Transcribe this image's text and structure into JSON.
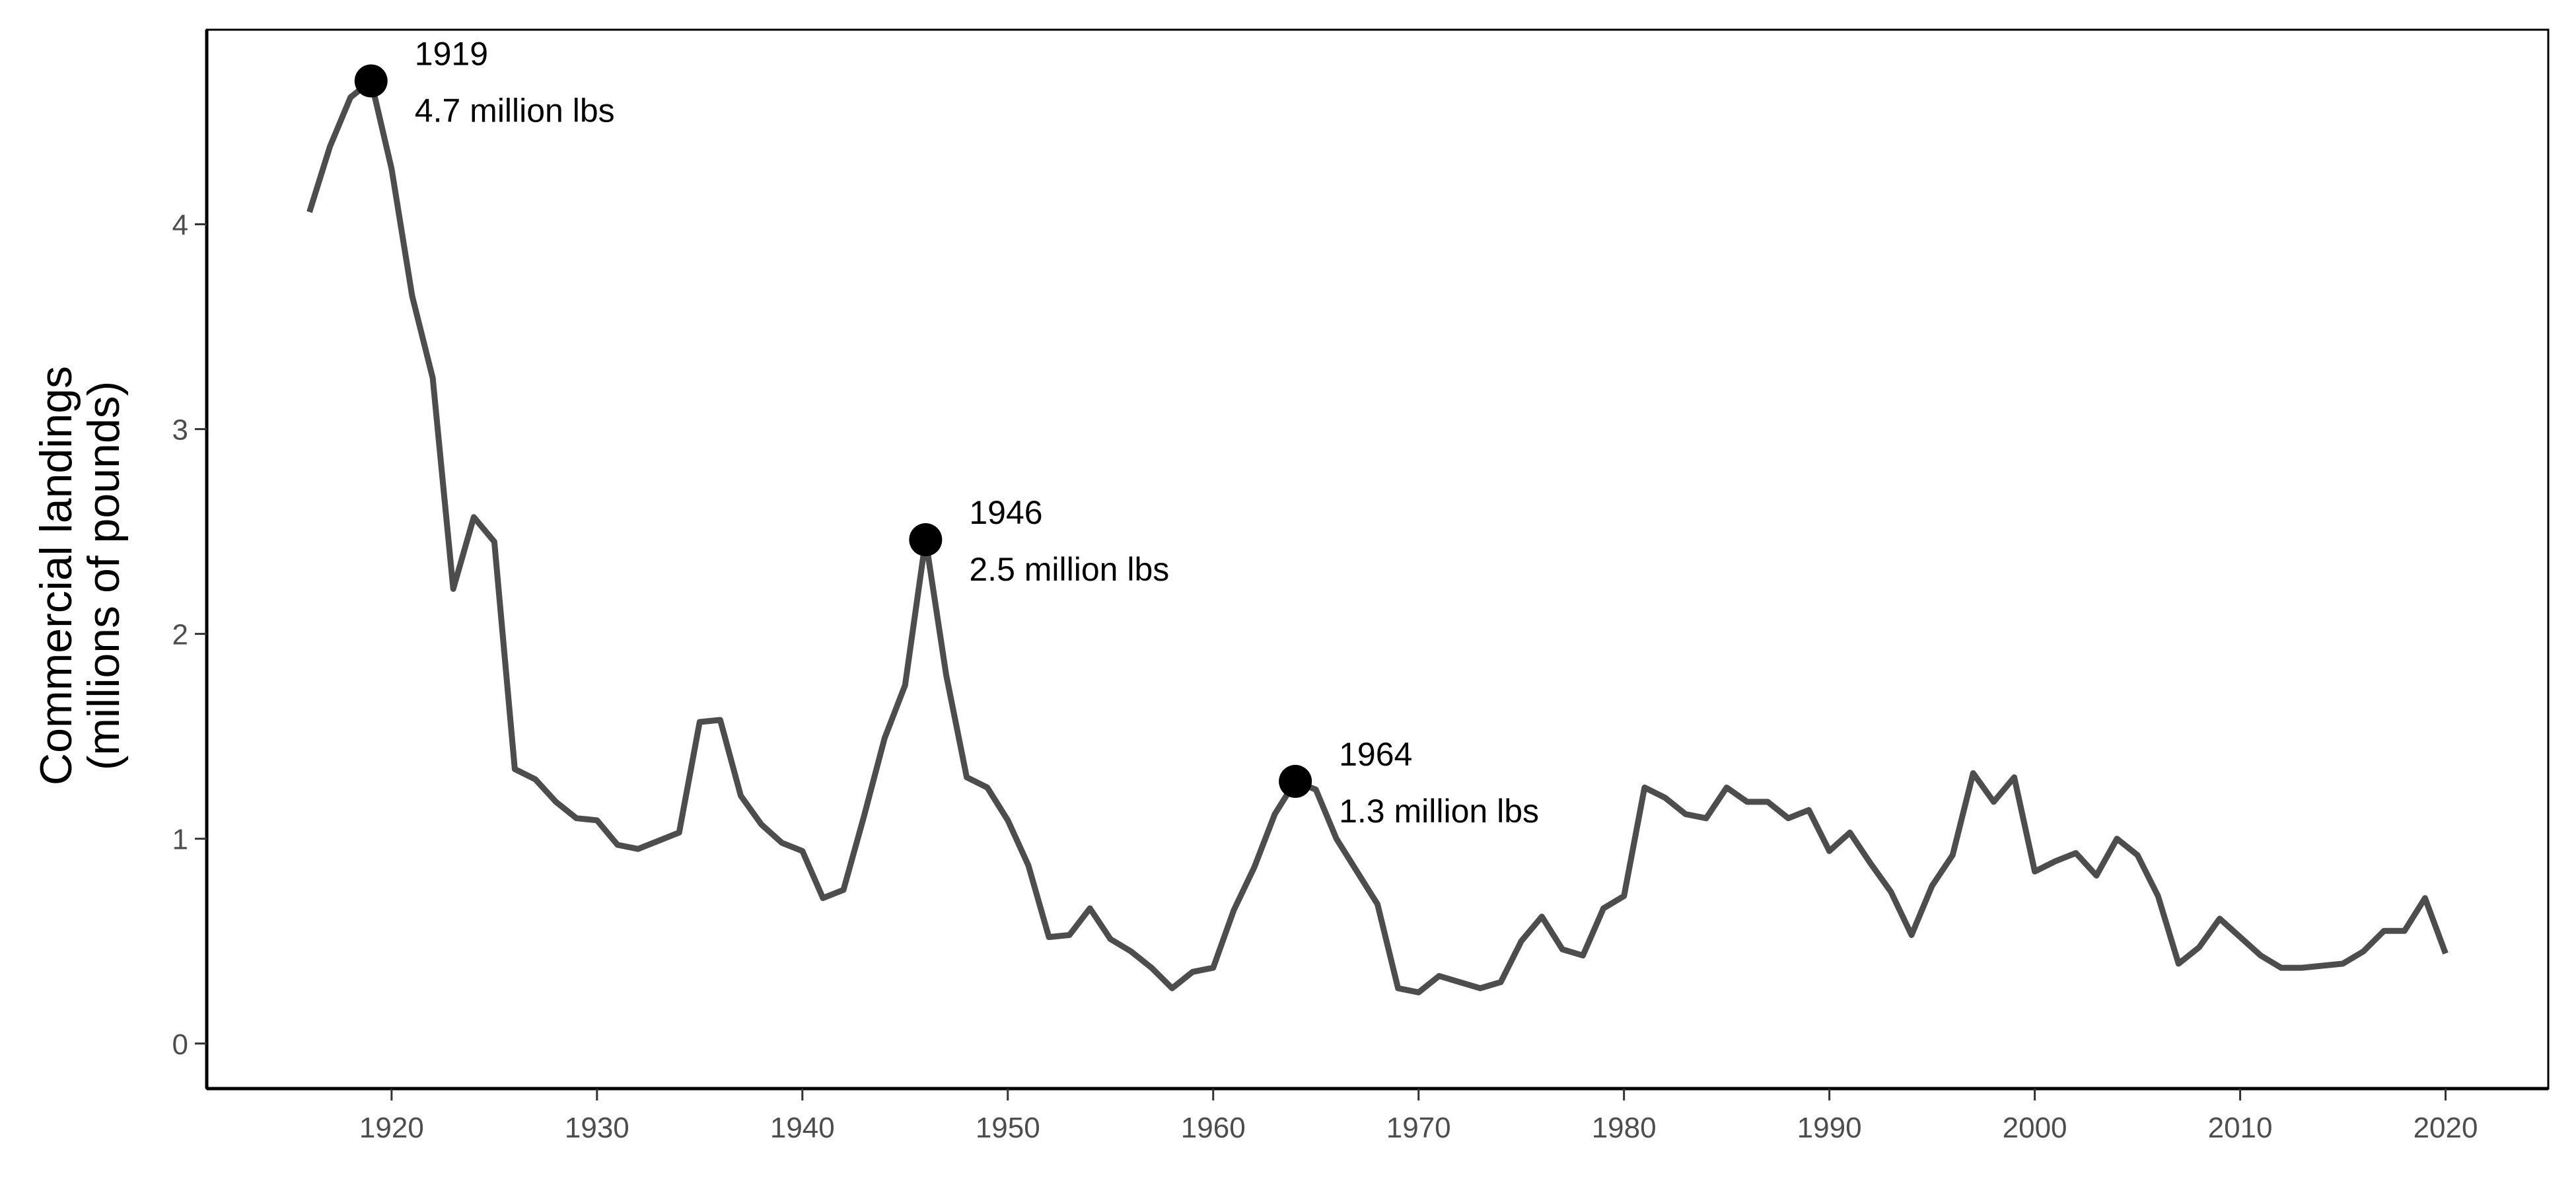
{
  "chart_data": {
    "type": "line",
    "title": "",
    "xlabel": "",
    "ylabel_lines": [
      "Commercial landings",
      "(millions of pounds)"
    ],
    "xlim": [
      1911,
      2025
    ],
    "ylim": [
      -0.22,
      4.95
    ],
    "x_ticks": [
      1920,
      1930,
      1940,
      1950,
      1960,
      1970,
      1980,
      1990,
      2000,
      2010,
      2020
    ],
    "y_ticks": [
      0,
      1,
      2,
      3,
      4
    ],
    "grid": false,
    "legend": "none",
    "line_color": "#4d4d4d",
    "point_color": "#000000",
    "series": [
      {
        "x": [
          1916,
          1917,
          1918,
          1919,
          1920,
          1921,
          1922,
          1923,
          1924,
          1925,
          1926,
          1927,
          1928,
          1929,
          1930,
          1931,
          1932,
          1933,
          1934,
          1935,
          1936,
          1937,
          1938,
          1939,
          1940,
          1941,
          1942,
          1943,
          1944,
          1945,
          1946,
          1947,
          1948,
          1949,
          1950,
          1951,
          1952,
          1953,
          1954,
          1955,
          1956,
          1957,
          1958,
          1959,
          1960,
          1961,
          1962,
          1963,
          1964,
          1965,
          1966,
          1967,
          1968,
          1969,
          1970,
          1971,
          1972,
          1973,
          1974,
          1975,
          1976,
          1977,
          1978,
          1979,
          1980,
          1981,
          1982,
          1983,
          1984,
          1985,
          1986,
          1987,
          1988,
          1989,
          1990,
          1991,
          1992,
          1993,
          1994,
          1995,
          1996,
          1997,
          1998,
          1999,
          2000,
          2001,
          2002,
          2003,
          2004,
          2005,
          2006,
          2007,
          2008,
          2009,
          2010,
          2011,
          2012,
          2013,
          2014,
          2015,
          2016,
          2017,
          2018,
          2019,
          2020
        ],
        "y": [
          4.06,
          4.38,
          4.62,
          4.7,
          4.27,
          3.65,
          3.25,
          2.22,
          2.57,
          2.45,
          1.34,
          1.29,
          1.18,
          1.1,
          1.09,
          0.97,
          0.95,
          0.99,
          1.03,
          1.57,
          1.58,
          1.21,
          1.07,
          0.98,
          0.94,
          0.71,
          0.75,
          1.11,
          1.49,
          1.75,
          2.46,
          1.8,
          1.3,
          1.25,
          1.09,
          0.87,
          0.52,
          0.53,
          0.66,
          0.51,
          0.45,
          0.37,
          0.27,
          0.35,
          0.37,
          0.65,
          0.86,
          1.12,
          1.28,
          1.24,
          1.0,
          0.84,
          0.68,
          0.27,
          0.25,
          0.33,
          0.3,
          0.27,
          0.3,
          0.5,
          0.62,
          0.46,
          0.43,
          0.66,
          0.72,
          1.25,
          1.2,
          1.12,
          1.1,
          1.25,
          1.18,
          1.18,
          1.1,
          1.14,
          0.94,
          1.03,
          0.88,
          0.74,
          0.53,
          0.77,
          0.92,
          1.32,
          1.18,
          1.3,
          0.84,
          0.89,
          0.93,
          0.82,
          1.0,
          0.92,
          0.72,
          0.39,
          0.47,
          0.61,
          0.52,
          0.43,
          0.37,
          0.37,
          0.38,
          0.39,
          0.45,
          0.55,
          0.55,
          0.71,
          0.44
        ]
      }
    ],
    "highlights": [
      {
        "x": 1919,
        "y": 4.7,
        "label_year": "1919",
        "label_value": "4.7 million lbs"
      },
      {
        "x": 1946,
        "y": 2.46,
        "label_year": "1946",
        "label_value": "2.5 million lbs"
      },
      {
        "x": 1964,
        "y": 1.28,
        "label_year": "1964",
        "label_value": "1.3 million lbs"
      }
    ]
  }
}
